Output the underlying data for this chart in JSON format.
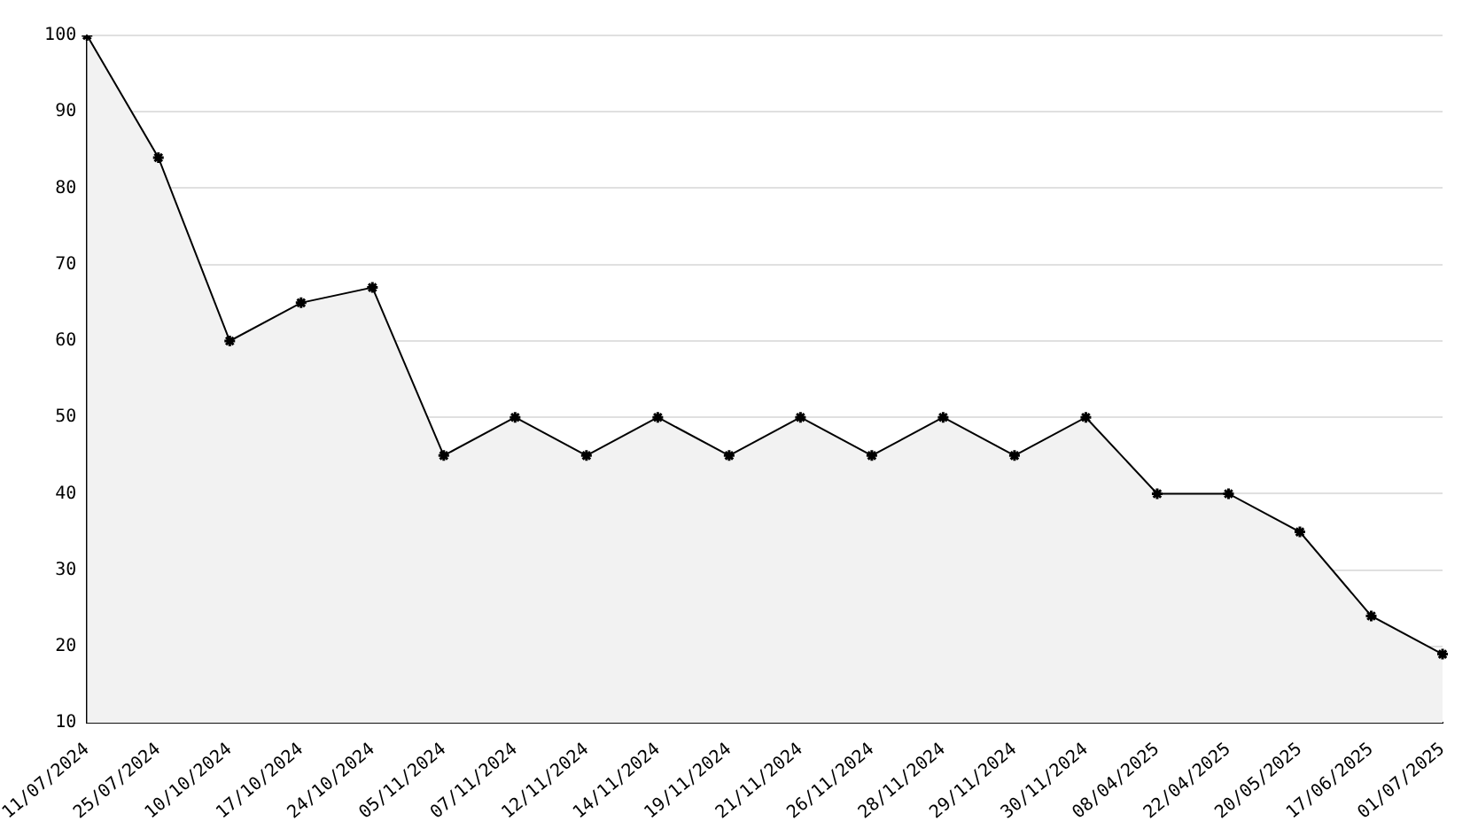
{
  "chart_data": {
    "type": "area",
    "categories": [
      "11/07/2024",
      "25/07/2024",
      "10/10/2024",
      "17/10/2024",
      "24/10/2024",
      "05/11/2024",
      "07/11/2024",
      "12/11/2024",
      "14/11/2024",
      "19/11/2024",
      "21/11/2024",
      "26/11/2024",
      "28/11/2024",
      "29/11/2024",
      "30/11/2024",
      "08/04/2025",
      "22/04/2025",
      "20/05/2025",
      "17/06/2025",
      "01/07/2025"
    ],
    "series": [
      {
        "color": "#000000",
        "values": [
          100,
          84,
          60,
          65,
          67,
          45,
          50,
          45,
          50,
          45,
          50,
          45,
          50,
          45,
          50,
          40,
          40,
          35,
          24,
          19
        ]
      }
    ],
    "ylim": [
      10,
      100
    ],
    "yticks": [
      10,
      20,
      30,
      40,
      50,
      60,
      70,
      80,
      90,
      100
    ],
    "grid": "y",
    "legend": false,
    "marker": "cross",
    "line_style": "solid"
  }
}
